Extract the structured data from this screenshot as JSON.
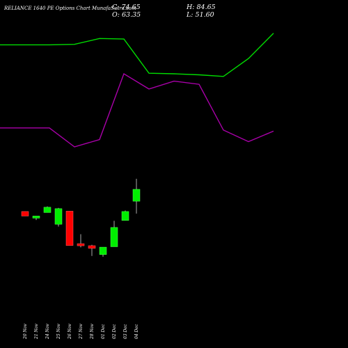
{
  "header": {
    "title": "RELIANCE 1640 PE Options Chart MunafaSutra.com",
    "c": "C: 74.65",
    "o": "O: 63.35",
    "h": "H: 84.65",
    "l": "L: 51.60"
  },
  "colors": {
    "background": "#000000",
    "up": "#00ee00",
    "down": "#ff0000",
    "wick": "#aaaaaa",
    "upper_line": "#00dd00",
    "lower_line": "#aa00aa",
    "text": "#ffffff"
  },
  "chart_data": {
    "type": "candlestick",
    "title": "RELIANCE 1640 PE Options Chart MunafaSutra.com",
    "categories": [
      "20 Nov",
      "21 Nov",
      "24 Nov",
      "25 Nov",
      "26 Nov",
      "27 Nov",
      "28 Nov",
      "01 Dec",
      "02 Dec",
      "03 Dec",
      "04 Dec"
    ],
    "candles": [
      {
        "date": "20 Nov",
        "open": 53.6,
        "high": 53.6,
        "low": 49.3,
        "close": 49.3
      },
      {
        "date": "21 Nov",
        "open": 48.2,
        "high": 49.3,
        "low": 45.5,
        "close": 49.3
      },
      {
        "date": "24 Nov",
        "open": 52.6,
        "high": 58.4,
        "low": 52.6,
        "close": 57.7
      },
      {
        "date": "25 Nov",
        "open": 41.5,
        "high": 57.0,
        "low": 39.3,
        "close": 56.3
      },
      {
        "date": "26 Nov",
        "open": 53.9,
        "high": 53.9,
        "low": 21.3,
        "close": 21.3
      },
      {
        "date": "27 Nov",
        "open": 23.0,
        "high": 32.0,
        "low": 19.5,
        "close": 21.3
      },
      {
        "date": "28 Nov",
        "open": 21.1,
        "high": 21.9,
        "low": 11.4,
        "close": 18.6
      },
      {
        "date": "01 Dec",
        "open": 12.7,
        "high": 19.3,
        "low": 10.6,
        "close": 19.7
      },
      {
        "date": "02 Dec",
        "open": 20.1,
        "high": 44.7,
        "low": 20.1,
        "close": 38.4
      },
      {
        "date": "03 Dec",
        "open": 45.1,
        "high": 54.5,
        "low": 45.1,
        "close": 53.6
      },
      {
        "date": "04 Dec",
        "open": 63.35,
        "high": 84.65,
        "low": 51.6,
        "close": 74.65
      }
    ],
    "upper_line": [
      212,
      212,
      212.5,
      218,
      217.5,
      185,
      184.5,
      183.5,
      182,
      199,
      223
    ],
    "lower_line": [
      133,
      133,
      115,
      122,
      184.5,
      170,
      177.5,
      174.5,
      131,
      120,
      130
    ],
    "y_unit_range": [
      -10,
      248
    ],
    "grid": false,
    "legend": "none"
  }
}
